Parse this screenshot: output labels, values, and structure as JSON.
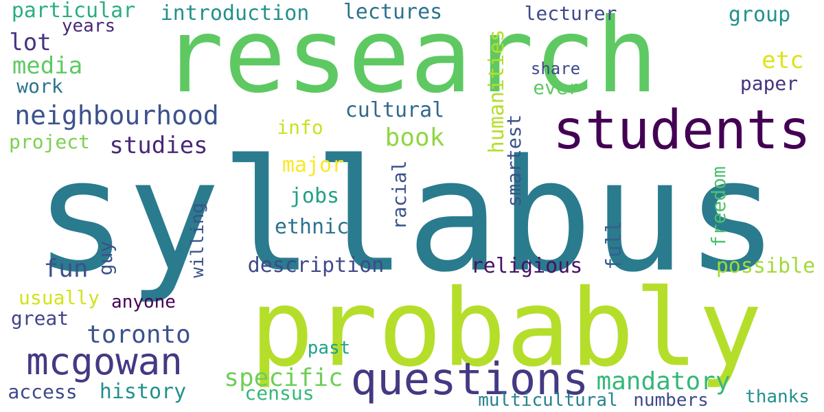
{
  "palette": {
    "dark_purple": "#440154",
    "indigo": "#482878",
    "slate_blue": "#3e4989",
    "steel_blue": "#31688e",
    "teal_blue": "#26828e",
    "teal": "#1f9e89",
    "sea_green": "#35b779",
    "green": "#6ece58",
    "lime": "#b5de2b",
    "yellow": "#fde725"
  },
  "words": [
    {
      "text": "syllabus",
      "color": "#2a7b8e"
    },
    {
      "text": "research",
      "color": "#5ec962"
    },
    {
      "text": "probably",
      "color": "#b5de2b"
    },
    {
      "text": "students",
      "color": "#440154"
    },
    {
      "text": "questions",
      "color": "#443983"
    },
    {
      "text": "mcgowan",
      "color": "#443983"
    },
    {
      "text": "neighbourhood",
      "color": "#3b528b"
    },
    {
      "text": "mandatory",
      "color": "#35b779"
    },
    {
      "text": "specific",
      "color": "#6ece58"
    },
    {
      "text": "book",
      "color": "#90d743"
    },
    {
      "text": "toronto",
      "color": "#3b528b"
    },
    {
      "text": "studies",
      "color": "#482878"
    },
    {
      "text": "media",
      "color": "#5ec962"
    },
    {
      "text": "description",
      "color": "#3e4989"
    },
    {
      "text": "lectures",
      "color": "#2c728e"
    },
    {
      "text": "introduction",
      "color": "#21918c"
    },
    {
      "text": "particular",
      "color": "#29af7f"
    },
    {
      "text": "lot",
      "color": "#46337f"
    },
    {
      "text": "history",
      "color": "#21918c"
    },
    {
      "text": "fun",
      "color": "#3b528b"
    },
    {
      "text": "cultural",
      "color": "#31688e"
    },
    {
      "text": "religious",
      "color": "#471164"
    },
    {
      "text": "etc",
      "color": "#dde318"
    },
    {
      "text": "group",
      "color": "#21918c"
    },
    {
      "text": "lecturer",
      "color": "#3e4989"
    },
    {
      "text": "paper",
      "color": "#46337f"
    },
    {
      "text": "possible",
      "color": "#a0da39"
    },
    {
      "text": "ethnic",
      "color": "#2c728e"
    },
    {
      "text": "jobs",
      "color": "#1fa187"
    },
    {
      "text": "major",
      "color": "#fde725"
    },
    {
      "text": "info",
      "color": "#cae11f"
    },
    {
      "text": "project",
      "color": "#7ad151"
    },
    {
      "text": "work",
      "color": "#2c728e"
    },
    {
      "text": "usually",
      "color": "#d2e21b"
    },
    {
      "text": "great",
      "color": "#414487"
    },
    {
      "text": "access",
      "color": "#3e4989"
    },
    {
      "text": "census",
      "color": "#35b779"
    },
    {
      "text": "multicultural",
      "color": "#26828e"
    },
    {
      "text": "numbers",
      "color": "#3e4989"
    },
    {
      "text": "thanks",
      "color": "#21918c"
    },
    {
      "text": "past",
      "color": "#1fa187"
    },
    {
      "text": "anyone",
      "color": "#440154"
    },
    {
      "text": "years",
      "color": "#482878"
    },
    {
      "text": "share",
      "color": "#3e4989"
    },
    {
      "text": "ever",
      "color": "#5ec962"
    },
    {
      "text": "humanities",
      "color": "#b5de2b"
    },
    {
      "text": "smartest",
      "color": "#3b528b"
    },
    {
      "text": "racial",
      "color": "#3b528b"
    },
    {
      "text": "freedom",
      "color": "#4ac16d"
    },
    {
      "text": "full",
      "color": "#355f8d"
    },
    {
      "text": "willing",
      "color": "#3b528b"
    },
    {
      "text": "guy",
      "color": "#3b528b"
    }
  ]
}
